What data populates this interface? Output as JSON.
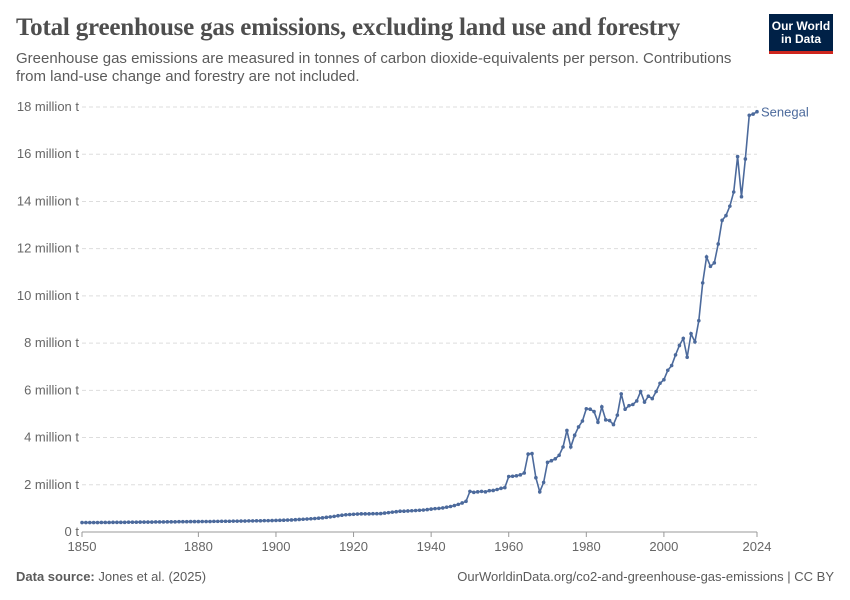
{
  "header": {
    "title": "Total greenhouse gas emissions, excluding land use and forestry",
    "subtitle": "Greenhouse gas emissions are measured in tonnes of carbon dioxide-equivalents per person. Contributions from land-use change and forestry are not included."
  },
  "logo": {
    "line1": "Our World",
    "line2": "in Data",
    "bg_color": "#002147",
    "accent_color": "#ce261e"
  },
  "footer": {
    "source_label": "Data source:",
    "source_text": "Jones et al. (2025)",
    "right_text": "OurWorldinData.org/co2-and-greenhouse-gas-emissions | CC BY"
  },
  "chart_data": {
    "type": "line",
    "xlim": [
      1850,
      2024
    ],
    "ylim": [
      0,
      18000000
    ],
    "x_ticks": [
      1850,
      1880,
      1900,
      1920,
      1940,
      1960,
      1980,
      2000,
      2024
    ],
    "y_ticks": [
      {
        "value": 0,
        "label": "0 t"
      },
      {
        "value": 2000000,
        "label": "2 million t"
      },
      {
        "value": 4000000,
        "label": "4 million t"
      },
      {
        "value": 6000000,
        "label": "6 million t"
      },
      {
        "value": 8000000,
        "label": "8 million t"
      },
      {
        "value": 10000000,
        "label": "10 million t"
      },
      {
        "value": 12000000,
        "label": "12 million t"
      },
      {
        "value": 14000000,
        "label": "14 million t"
      },
      {
        "value": 16000000,
        "label": "16 million t"
      },
      {
        "value": 18000000,
        "label": "18 million t"
      }
    ],
    "grid": true,
    "series": [
      {
        "name": "Senegal",
        "color": "#4c6a9c",
        "points": [
          [
            1850,
            400000
          ],
          [
            1851,
            400000
          ],
          [
            1852,
            400000
          ],
          [
            1853,
            400000
          ],
          [
            1854,
            400000
          ],
          [
            1855,
            405000
          ],
          [
            1856,
            405000
          ],
          [
            1857,
            405000
          ],
          [
            1858,
            410000
          ],
          [
            1859,
            410000
          ],
          [
            1860,
            410000
          ],
          [
            1861,
            410000
          ],
          [
            1862,
            415000
          ],
          [
            1863,
            415000
          ],
          [
            1864,
            415000
          ],
          [
            1865,
            420000
          ],
          [
            1866,
            420000
          ],
          [
            1867,
            420000
          ],
          [
            1868,
            420000
          ],
          [
            1869,
            425000
          ],
          [
            1870,
            425000
          ],
          [
            1871,
            425000
          ],
          [
            1872,
            430000
          ],
          [
            1873,
            430000
          ],
          [
            1874,
            430000
          ],
          [
            1875,
            435000
          ],
          [
            1876,
            435000
          ],
          [
            1877,
            435000
          ],
          [
            1878,
            440000
          ],
          [
            1879,
            440000
          ],
          [
            1880,
            440000
          ],
          [
            1881,
            445000
          ],
          [
            1882,
            445000
          ],
          [
            1883,
            445000
          ],
          [
            1884,
            450000
          ],
          [
            1885,
            450000
          ],
          [
            1886,
            455000
          ],
          [
            1887,
            455000
          ],
          [
            1888,
            455000
          ],
          [
            1889,
            460000
          ],
          [
            1890,
            460000
          ],
          [
            1891,
            465000
          ],
          [
            1892,
            465000
          ],
          [
            1893,
            470000
          ],
          [
            1894,
            470000
          ],
          [
            1895,
            475000
          ],
          [
            1896,
            475000
          ],
          [
            1897,
            480000
          ],
          [
            1898,
            480000
          ],
          [
            1899,
            485000
          ],
          [
            1900,
            490000
          ],
          [
            1901,
            495000
          ],
          [
            1902,
            500000
          ],
          [
            1903,
            505000
          ],
          [
            1904,
            510000
          ],
          [
            1905,
            520000
          ],
          [
            1906,
            530000
          ],
          [
            1907,
            540000
          ],
          [
            1908,
            550000
          ],
          [
            1909,
            560000
          ],
          [
            1910,
            570000
          ],
          [
            1911,
            585000
          ],
          [
            1912,
            600000
          ],
          [
            1913,
            620000
          ],
          [
            1914,
            640000
          ],
          [
            1915,
            660000
          ],
          [
            1916,
            690000
          ],
          [
            1917,
            710000
          ],
          [
            1918,
            730000
          ],
          [
            1919,
            740000
          ],
          [
            1920,
            750000
          ],
          [
            1921,
            760000
          ],
          [
            1922,
            770000
          ],
          [
            1923,
            770000
          ],
          [
            1924,
            770000
          ],
          [
            1925,
            775000
          ],
          [
            1926,
            775000
          ],
          [
            1927,
            780000
          ],
          [
            1928,
            800000
          ],
          [
            1929,
            820000
          ],
          [
            1930,
            840000
          ],
          [
            1931,
            860000
          ],
          [
            1932,
            880000
          ],
          [
            1933,
            880000
          ],
          [
            1934,
            890000
          ],
          [
            1935,
            900000
          ],
          [
            1936,
            910000
          ],
          [
            1937,
            920000
          ],
          [
            1938,
            930000
          ],
          [
            1939,
            950000
          ],
          [
            1940,
            970000
          ],
          [
            1941,
            990000
          ],
          [
            1942,
            1000000
          ],
          [
            1943,
            1020000
          ],
          [
            1944,
            1050000
          ],
          [
            1945,
            1080000
          ],
          [
            1946,
            1120000
          ],
          [
            1947,
            1170000
          ],
          [
            1948,
            1230000
          ],
          [
            1949,
            1300000
          ],
          [
            1950,
            1720000
          ],
          [
            1951,
            1680000
          ],
          [
            1952,
            1700000
          ],
          [
            1953,
            1720000
          ],
          [
            1954,
            1700000
          ],
          [
            1955,
            1750000
          ],
          [
            1956,
            1760000
          ],
          [
            1957,
            1800000
          ],
          [
            1958,
            1850000
          ],
          [
            1959,
            1880000
          ],
          [
            1960,
            2350000
          ],
          [
            1961,
            2360000
          ],
          [
            1962,
            2380000
          ],
          [
            1963,
            2420000
          ],
          [
            1964,
            2500000
          ],
          [
            1965,
            3300000
          ],
          [
            1966,
            3320000
          ],
          [
            1967,
            2300000
          ],
          [
            1968,
            1700000
          ],
          [
            1969,
            2100000
          ],
          [
            1970,
            2950000
          ],
          [
            1971,
            3020000
          ],
          [
            1972,
            3100000
          ],
          [
            1973,
            3250000
          ],
          [
            1974,
            3600000
          ],
          [
            1975,
            4300000
          ],
          [
            1976,
            3600000
          ],
          [
            1977,
            4100000
          ],
          [
            1978,
            4450000
          ],
          [
            1979,
            4700000
          ],
          [
            1980,
            5220000
          ],
          [
            1981,
            5200000
          ],
          [
            1982,
            5100000
          ],
          [
            1983,
            4650000
          ],
          [
            1984,
            5300000
          ],
          [
            1985,
            4750000
          ],
          [
            1986,
            4720000
          ],
          [
            1987,
            4550000
          ],
          [
            1988,
            4950000
          ],
          [
            1989,
            5850000
          ],
          [
            1990,
            5200000
          ],
          [
            1991,
            5350000
          ],
          [
            1992,
            5400000
          ],
          [
            1993,
            5550000
          ],
          [
            1994,
            5950000
          ],
          [
            1995,
            5500000
          ],
          [
            1996,
            5750000
          ],
          [
            1997,
            5650000
          ],
          [
            1998,
            5950000
          ],
          [
            1999,
            6300000
          ],
          [
            2000,
            6450000
          ],
          [
            2001,
            6850000
          ],
          [
            2002,
            7050000
          ],
          [
            2003,
            7500000
          ],
          [
            2004,
            7900000
          ],
          [
            2005,
            8200000
          ],
          [
            2006,
            7400000
          ],
          [
            2007,
            8400000
          ],
          [
            2008,
            8050000
          ],
          [
            2009,
            8950000
          ],
          [
            2010,
            10550000
          ],
          [
            2011,
            11650000
          ],
          [
            2012,
            11250000
          ],
          [
            2013,
            11400000
          ],
          [
            2014,
            12200000
          ],
          [
            2015,
            13200000
          ],
          [
            2016,
            13400000
          ],
          [
            2017,
            13800000
          ],
          [
            2018,
            14400000
          ],
          [
            2019,
            15900000
          ],
          [
            2020,
            14200000
          ],
          [
            2021,
            15800000
          ],
          [
            2022,
            17650000
          ],
          [
            2023,
            17700000
          ],
          [
            2024,
            17800000
          ]
        ]
      }
    ]
  }
}
